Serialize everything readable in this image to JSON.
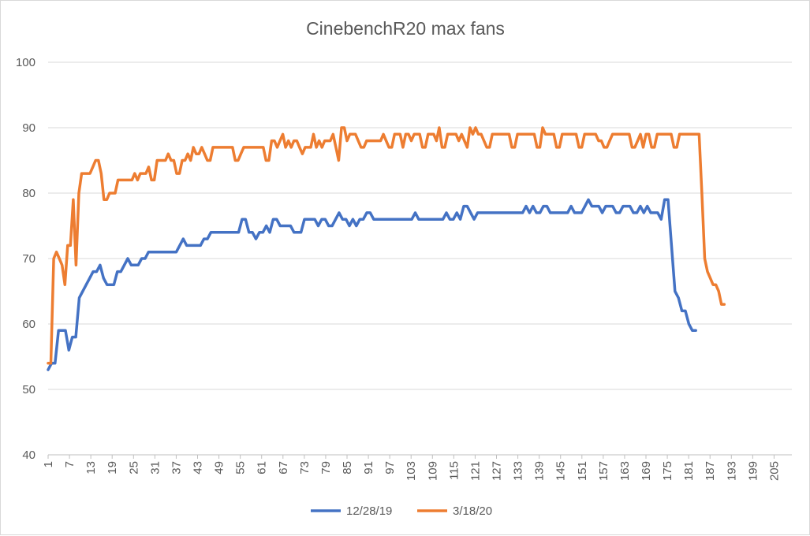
{
  "chart_data": {
    "type": "line",
    "title": "CinebenchR20 max fans",
    "xlabel": "",
    "ylabel": "",
    "ylim": [
      40,
      100
    ],
    "yticks": [
      40,
      50,
      60,
      70,
      80,
      90,
      100
    ],
    "xlim": [
      1,
      210
    ],
    "xticks": [
      1,
      7,
      13,
      19,
      25,
      31,
      37,
      43,
      49,
      55,
      61,
      67,
      73,
      79,
      85,
      91,
      97,
      103,
      109,
      115,
      121,
      127,
      133,
      139,
      145,
      151,
      157,
      163,
      169,
      175,
      181,
      187,
      193,
      199,
      205
    ],
    "grid": "horizontal",
    "legend_position": "bottom",
    "series": [
      {
        "name": "12/28/19",
        "color": "#4472c4",
        "values": [
          53,
          54,
          54,
          59,
          59,
          59,
          56,
          58,
          58,
          64,
          65,
          66,
          67,
          68,
          68,
          69,
          67,
          66,
          66,
          66,
          68,
          68,
          69,
          70,
          69,
          69,
          69,
          70,
          70,
          71,
          71,
          71,
          71,
          71,
          71,
          71,
          71,
          71,
          72,
          73,
          72,
          72,
          72,
          72,
          72,
          73,
          73,
          74,
          74,
          74,
          74,
          74,
          74,
          74,
          74,
          74,
          76,
          76,
          74,
          74,
          73,
          74,
          74,
          75,
          74,
          76,
          76,
          75,
          75,
          75,
          75,
          74,
          74,
          74,
          76,
          76,
          76,
          76,
          75,
          76,
          76,
          75,
          75,
          76,
          77,
          76,
          76,
          75,
          76,
          75,
          76,
          76,
          77,
          77,
          76,
          76,
          76,
          76,
          76,
          76,
          76,
          76,
          76,
          76,
          76,
          76,
          77,
          76,
          76,
          76,
          76,
          76,
          76,
          76,
          76,
          77,
          76,
          76,
          77,
          76,
          78,
          78,
          77,
          76,
          77,
          77,
          77,
          77,
          77,
          77,
          77,
          77,
          77,
          77,
          77,
          77,
          77,
          77,
          78,
          77,
          78,
          77,
          77,
          78,
          78,
          77,
          77,
          77,
          77,
          77,
          77,
          78,
          77,
          77,
          77,
          78,
          79,
          78,
          78,
          78,
          77,
          78,
          78,
          78,
          77,
          77,
          78,
          78,
          78,
          77,
          77,
          78,
          77,
          78,
          77,
          77,
          77,
          76,
          79,
          79,
          72,
          65,
          64,
          62,
          62,
          60,
          59,
          59
        ],
        "x_end_note": "series length 184"
      },
      {
        "name": "3/18/20",
        "color": "#ed7d31",
        "values": [
          54,
          54,
          70,
          71,
          70,
          69,
          66,
          72,
          72,
          79,
          69,
          80,
          83,
          83,
          83,
          83,
          84,
          85,
          85,
          83,
          79,
          79,
          80,
          80,
          80,
          82,
          82,
          82,
          82,
          82,
          82,
          83,
          82,
          83,
          83,
          83,
          84,
          82,
          82,
          85,
          85,
          85,
          85,
          86,
          85,
          85,
          83,
          83,
          85,
          85,
          86,
          85,
          87,
          86,
          86,
          87,
          86,
          85,
          85,
          87,
          87,
          87,
          87,
          87,
          87,
          87,
          87,
          85,
          85,
          86,
          87,
          87,
          87,
          87,
          87,
          87,
          87,
          87,
          85,
          85,
          88,
          88,
          87,
          88,
          89,
          87,
          88,
          87,
          88,
          88,
          87,
          86,
          87,
          87,
          87,
          89,
          87,
          88,
          87,
          88,
          88,
          88,
          89,
          87,
          85,
          90,
          90,
          88,
          89,
          89,
          89,
          88,
          87,
          87,
          88,
          88,
          88,
          88,
          88,
          88,
          89,
          88,
          87,
          87,
          89,
          89,
          89,
          87,
          89,
          89,
          88,
          89,
          89,
          89,
          87,
          87,
          89,
          89,
          89,
          88,
          90,
          87,
          87,
          89,
          89,
          89,
          89,
          88,
          89,
          88,
          87,
          90,
          89,
          90,
          89,
          89,
          88,
          87,
          87,
          89,
          89,
          89,
          89,
          89,
          89,
          89,
          87,
          87,
          89,
          89,
          89,
          89,
          89,
          89,
          89,
          87,
          87,
          90,
          89,
          89,
          89,
          89,
          87,
          87,
          89,
          89,
          89,
          89,
          89,
          89,
          87,
          87,
          89,
          89,
          89,
          89,
          89,
          88,
          88,
          87,
          87,
          88,
          89,
          89,
          89,
          89,
          89,
          89,
          89,
          87,
          87,
          88,
          89,
          87,
          89,
          89,
          87,
          87,
          89,
          89,
          89,
          89,
          89,
          89,
          87,
          87,
          89,
          89,
          89,
          89,
          89,
          89,
          89,
          89,
          80,
          70,
          68,
          67,
          66,
          66,
          65,
          63,
          63
        ],
        "x_end_note": "resampled to end at 193"
      }
    ]
  }
}
